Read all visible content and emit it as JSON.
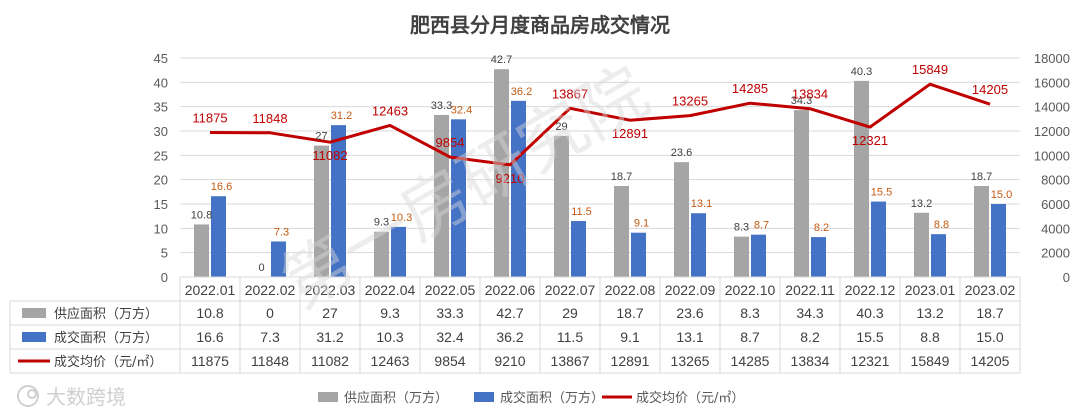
{
  "chart_data": {
    "type": "bar",
    "title": "肥西县分月度商品房成交情况",
    "categories": [
      "2022.01",
      "2022.02",
      "2022.03",
      "2022.04",
      "2022.05",
      "2022.06",
      "2022.07",
      "2022.08",
      "2022.09",
      "2022.10",
      "2022.11",
      "2022.12",
      "2023.01",
      "2023.02"
    ],
    "series": [
      {
        "name": "供应面积（万方）",
        "type": "bar",
        "axis": "left",
        "color": "#a5a5a5",
        "values": [
          10.8,
          0,
          27,
          9.3,
          33.3,
          42.7,
          29,
          18.7,
          23.6,
          8.3,
          34.3,
          40.3,
          13.2,
          18.7
        ],
        "labels": [
          "10.8",
          "0",
          "27",
          "9.3",
          "33.3",
          "42.7",
          "29",
          "18.7",
          "23.6",
          "8.3",
          "34.3",
          "40.3",
          "13.2",
          "18.7"
        ]
      },
      {
        "name": "成交面积（万方）",
        "type": "bar",
        "axis": "left",
        "color": "#4472c4",
        "values": [
          16.6,
          7.3,
          31.2,
          10.3,
          32.4,
          36.2,
          11.5,
          9.1,
          13.1,
          8.7,
          8.2,
          15.5,
          8.8,
          15.0
        ],
        "labels": [
          "16.6",
          "7.3",
          "31.2",
          "10.3",
          "32.4",
          "36.2",
          "11.5",
          "9.1",
          "13.1",
          "8.7",
          "8.2",
          "15.5",
          "8.8",
          "15.0"
        ]
      },
      {
        "name": "成交均价（元/㎡）",
        "type": "line",
        "axis": "right",
        "color": "#c00000",
        "values": [
          11875,
          11848,
          11082,
          12463,
          9854,
          9210,
          13867,
          12891,
          13265,
          14285,
          13834,
          12321,
          15849,
          14205
        ],
        "labels": [
          "11875",
          "11848",
          "11082",
          "12463",
          "9854",
          "9210",
          "13867",
          "12891",
          "13265",
          "14285",
          "13834",
          "12321",
          "15849",
          "14205"
        ]
      }
    ],
    "y_left": {
      "min": 0,
      "max": 45,
      "step": 5
    },
    "y_right": {
      "min": 0,
      "max": 18000,
      "step": 2000
    },
    "data_table": true,
    "legend_position": "bottom"
  },
  "watermark": {
    "logo_text": "大数跨境",
    "overlay_text": "第一房研究院"
  }
}
